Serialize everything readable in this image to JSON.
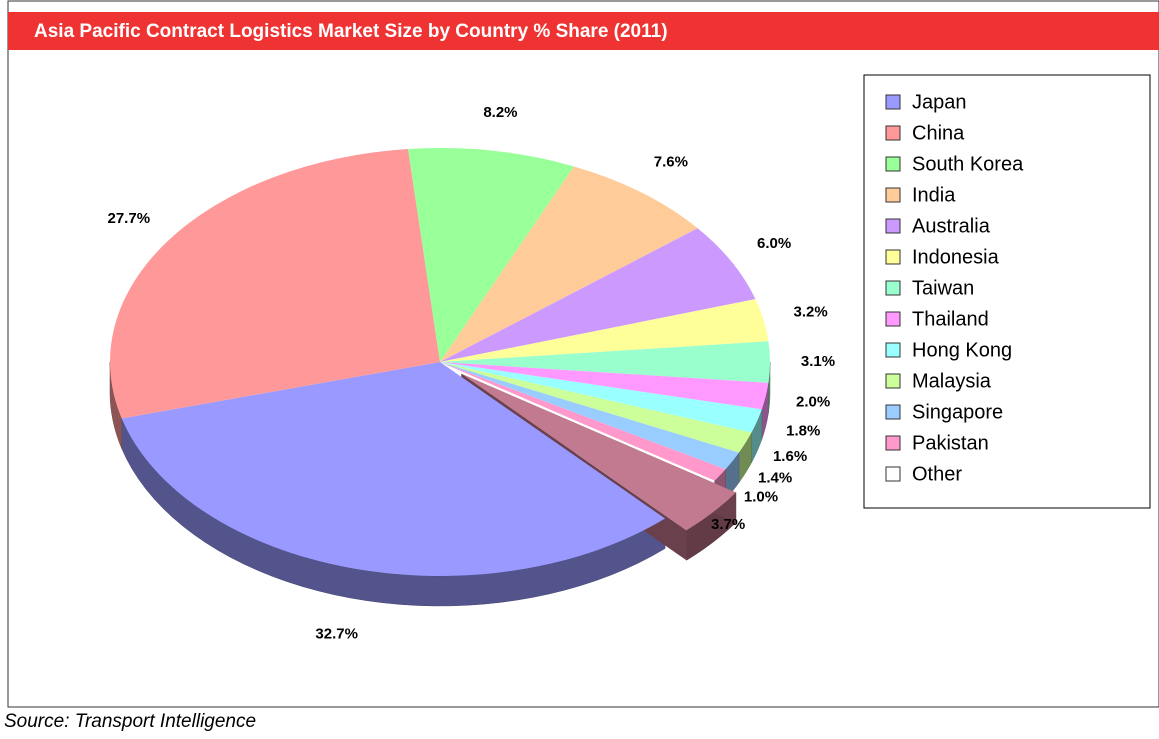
{
  "chart_data": {
    "type": "pie",
    "title": "Asia Pacific Contract Logistics Market Size by Country % Share  (2011)",
    "source": "Source: Transport Intelligence",
    "categories": [
      "Japan",
      "China",
      "South Korea",
      "India",
      "Australia",
      "Indonesia",
      "Taiwan",
      "Thailand",
      "Hong Kong",
      "Malaysia",
      "Singapore",
      "Pakistan",
      "Other"
    ],
    "values": [
      32.7,
      27.7,
      8.2,
      7.6,
      6.0,
      3.2,
      3.1,
      2.0,
      1.8,
      1.6,
      1.4,
      1.0,
      3.7
    ],
    "value_labels": [
      "32.7%",
      "27.7%",
      "8.2%",
      "7.6%",
      "6.0%",
      "3.2%",
      "3.1%",
      "2.0%",
      "1.8%",
      "1.6%",
      "1.4%",
      "1.0%",
      "3.7%"
    ],
    "colors": [
      "#9999ff",
      "#ff9999",
      "#99ff99",
      "#ffcc99",
      "#cc99ff",
      "#ffff99",
      "#99ffcc",
      "#ff99ff",
      "#99ffff",
      "#ccff99",
      "#99ccff",
      "#ff99cc",
      "#ffffff"
    ],
    "legend": "right"
  }
}
